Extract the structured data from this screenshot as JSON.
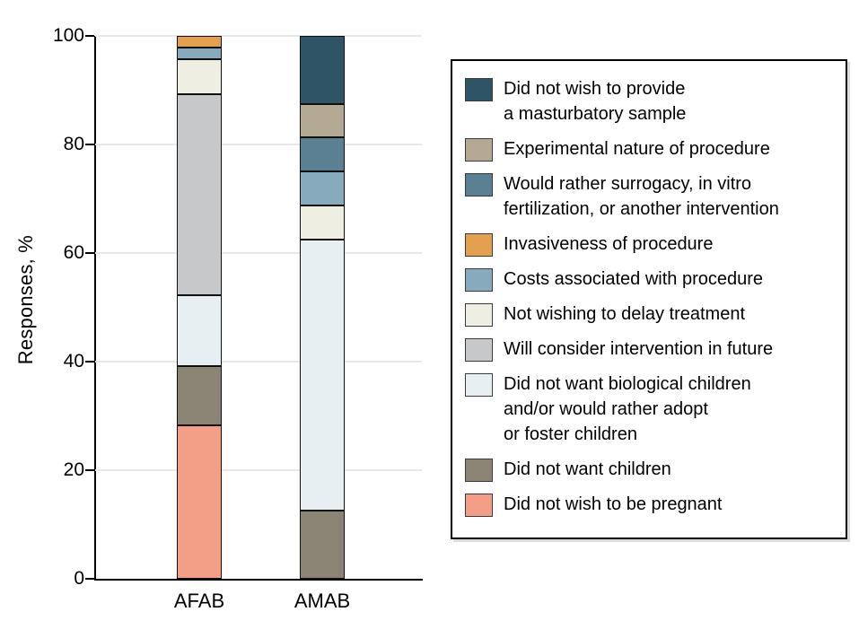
{
  "chart": {
    "ylabel": "Responses, %",
    "yticks": [
      0,
      20,
      40,
      60,
      80,
      100
    ],
    "axis_color": "#000000",
    "grid_color": "#e8e8e8"
  },
  "chart_data": {
    "type": "bar",
    "stacked": true,
    "title": "",
    "xlabel": "",
    "ylabel": "Responses, %",
    "ylim": [
      0,
      100
    ],
    "yticks": [
      0,
      20,
      40,
      60,
      80,
      100
    ],
    "grid": true,
    "legend_position": "right",
    "categories": [
      "AFAB",
      "AMAB"
    ],
    "series": [
      {
        "name": "Did not wish to be pregnant",
        "color": "#F39E87",
        "values": [
          28.3,
          0
        ]
      },
      {
        "name": "Did not want children",
        "color": "#8B8374",
        "values": [
          10.9,
          12.5
        ]
      },
      {
        "name": "Did not want biological children and/or would rather adopt or foster children",
        "color": "#E7EFF3",
        "values": [
          13.0,
          50.0
        ]
      },
      {
        "name": "Will consider intervention in future",
        "color": "#C7C8CA",
        "values": [
          37.0,
          0
        ]
      },
      {
        "name": "Not wishing to delay treatment",
        "color": "#EFEEE2",
        "values": [
          6.5,
          6.25
        ]
      },
      {
        "name": "Costs associated with procedure",
        "color": "#87AABD",
        "values": [
          2.2,
          6.25
        ]
      },
      {
        "name": "Invasiveness of procedure",
        "color": "#E3A14F",
        "values": [
          2.1,
          0
        ]
      },
      {
        "name": "Would rather surrogacy, in vitro fertilization, or another intervention",
        "color": "#5C8093",
        "values": [
          0,
          6.25
        ]
      },
      {
        "name": "Experimental nature of procedure",
        "color": "#B4A992",
        "values": [
          0,
          6.25
        ]
      },
      {
        "name": "Did not wish to provide a masturbatory sample",
        "color": "#2E5465",
        "values": [
          0,
          12.5
        ]
      }
    ]
  },
  "legend": {
    "items": [
      {
        "color": "#2E5465",
        "lines": [
          "Did not wish to provide",
          "a masturbatory sample"
        ]
      },
      {
        "color": "#B4A992",
        "lines": [
          "Experimental nature of procedure"
        ]
      },
      {
        "color": "#5C8093",
        "lines": [
          "Would rather surrogacy, in vitro",
          "fertilization, or another intervention"
        ]
      },
      {
        "color": "#E3A14F",
        "lines": [
          "Invasiveness of procedure"
        ]
      },
      {
        "color": "#87AABD",
        "lines": [
          "Costs associated with procedure"
        ]
      },
      {
        "color": "#EFEEE2",
        "lines": [
          "Not wishing to delay treatment"
        ]
      },
      {
        "color": "#C7C8CA",
        "lines": [
          "Will consider intervention in future"
        ]
      },
      {
        "color": "#E7EFF3",
        "lines": [
          "Did not want biological children",
          "and/or would rather adopt",
          "or foster children"
        ]
      },
      {
        "color": "#8B8374",
        "lines": [
          "Did not want children"
        ]
      },
      {
        "color": "#F39E87",
        "lines": [
          "Did not wish to be pregnant"
        ]
      }
    ]
  }
}
